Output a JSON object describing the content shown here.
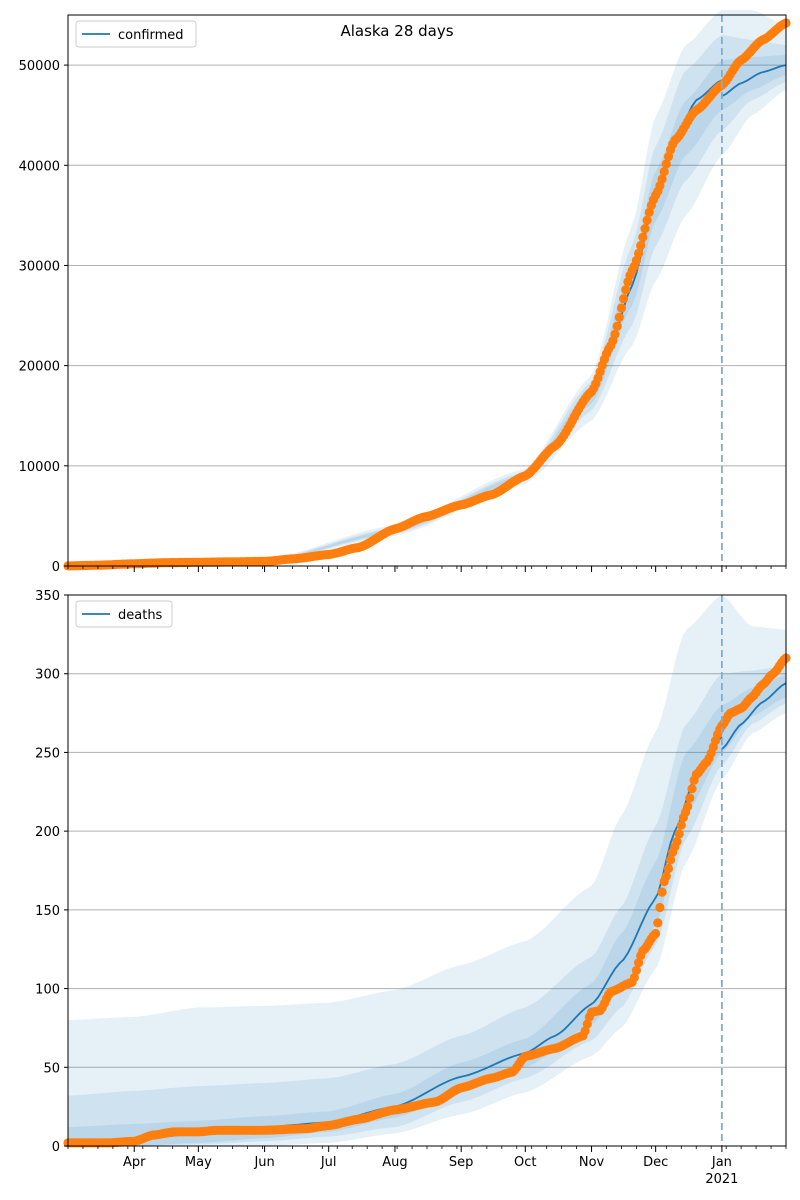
{
  "figure_title": "Alaska 28 days",
  "colors": {
    "line": "#1f77b4",
    "band": "#1f77b4",
    "points": "#ff7f0e",
    "grid": "#b0b0b0",
    "vline": "#7eaed3"
  },
  "x_axis": {
    "start": "2020-03-01",
    "end": "2021-01-31",
    "divider_date": "2021-01-01",
    "year_label": "2021",
    "month_ticks": [
      {
        "date": "2020-04-01",
        "label": "Apr"
      },
      {
        "date": "2020-05-01",
        "label": "May"
      },
      {
        "date": "2020-06-01",
        "label": "Jun"
      },
      {
        "date": "2020-07-01",
        "label": "Jul"
      },
      {
        "date": "2020-08-01",
        "label": "Aug"
      },
      {
        "date": "2020-09-01",
        "label": "Sep"
      },
      {
        "date": "2020-10-01",
        "label": "Oct"
      },
      {
        "date": "2020-11-01",
        "label": "Nov"
      },
      {
        "date": "2020-12-01",
        "label": "Dec"
      },
      {
        "date": "2021-01-01",
        "label": "Jan"
      }
    ]
  },
  "chart_data": [
    {
      "type": "line",
      "legend": "confirmed",
      "legend_loc": "upper left",
      "grid": "y",
      "ylim": [
        0,
        55000
      ],
      "yticks": [
        0,
        10000,
        20000,
        30000,
        40000,
        50000
      ],
      "model_line": {
        "x": [
          "2020-03-01",
          "2020-04-01",
          "2020-05-01",
          "2020-06-01",
          "2020-06-20",
          "2020-07-01",
          "2020-07-15",
          "2020-08-01",
          "2020-08-15",
          "2020-09-01",
          "2020-09-15",
          "2020-10-01",
          "2020-10-15",
          "2020-11-01",
          "2020-11-10",
          "2020-11-20",
          "2020-12-01",
          "2020-12-10",
          "2020-12-20",
          "2021-01-01",
          "2021-01-10",
          "2021-01-20",
          "2021-01-31"
        ],
        "y": [
          50,
          200,
          370,
          450,
          650,
          1000,
          1700,
          3500,
          4900,
          6100,
          7200,
          9000,
          11800,
          17000,
          22000,
          28000,
          37000,
          42500,
          46500,
          48500,
          49100,
          49600,
          50000
        ]
      },
      "observed_forecast_line": {
        "x": [
          "2021-01-01",
          "2021-01-10",
          "2021-01-20",
          "2021-01-31"
        ],
        "y": [
          46900,
          48200,
          49300,
          50000
        ]
      },
      "bands": [
        {
          "level": "outer",
          "x": [
            "2020-03-01",
            "2020-06-01",
            "2020-08-01",
            "2020-10-01",
            "2020-11-01",
            "2020-11-20",
            "2020-12-01",
            "2020-12-15",
            "2021-01-01",
            "2021-01-15",
            "2021-01-31"
          ],
          "lower": [
            0,
            350,
            3000,
            8200,
            14500,
            22000,
            28500,
            35000,
            41000,
            45000,
            47500
          ],
          "upper": [
            150,
            650,
            4100,
            9700,
            19000,
            34000,
            45000,
            52000,
            55500,
            55500,
            54000
          ]
        },
        {
          "level": "mid",
          "x": [
            "2020-03-01",
            "2020-06-01",
            "2020-08-01",
            "2020-10-01",
            "2020-11-01",
            "2020-11-20",
            "2020-12-01",
            "2020-12-15",
            "2021-01-01",
            "2021-01-15",
            "2021-01-31"
          ],
          "lower": [
            20,
            400,
            3200,
            8500,
            15500,
            24000,
            32000,
            38500,
            43500,
            46500,
            48300
          ],
          "upper": [
            100,
            550,
            3850,
            9400,
            18400,
            32000,
            42000,
            49500,
            53000,
            52500,
            52000
          ]
        },
        {
          "level": "inner",
          "x": [
            "2020-03-01",
            "2020-06-01",
            "2020-08-01",
            "2020-10-01",
            "2020-11-01",
            "2020-11-20",
            "2020-12-01",
            "2020-12-15",
            "2021-01-01",
            "2021-01-15",
            "2021-01-31"
          ],
          "lower": [
            30,
            420,
            3350,
            8800,
            16200,
            26000,
            34500,
            41000,
            45500,
            47500,
            49000
          ],
          "upper": [
            80,
            500,
            3700,
            9200,
            17700,
            30000,
            39500,
            46500,
            50500,
            50800,
            51000
          ]
        }
      ],
      "observations": {
        "x": [
          "2020-03-01",
          "2020-03-15",
          "2020-04-01",
          "2020-04-15",
          "2020-05-01",
          "2020-05-15",
          "2020-06-01",
          "2020-06-15",
          "2020-07-01",
          "2020-07-15",
          "2020-08-01",
          "2020-08-15",
          "2020-09-01",
          "2020-09-15",
          "2020-10-01",
          "2020-10-15",
          "2020-11-01",
          "2020-11-10",
          "2020-11-20",
          "2020-12-01",
          "2020-12-10",
          "2020-12-20",
          "2021-01-01",
          "2021-01-10",
          "2021-01-20",
          "2021-01-31"
        ],
        "y": [
          10,
          80,
          220,
          330,
          370,
          410,
          460,
          720,
          1150,
          1850,
          3700,
          4900,
          6100,
          7100,
          9000,
          12000,
          17400,
          22000,
          29500,
          37000,
          42500,
          45500,
          48000,
          50500,
          52500,
          54200
        ]
      }
    },
    {
      "type": "line",
      "legend": "deaths",
      "legend_loc": "upper left",
      "grid": "y",
      "ylim": [
        0,
        350
      ],
      "yticks": [
        0,
        50,
        100,
        150,
        200,
        250,
        300,
        350
      ],
      "model_line": {
        "x": [
          "2020-03-01",
          "2020-04-01",
          "2020-05-01",
          "2020-06-01",
          "2020-07-01",
          "2020-08-01",
          "2020-09-01",
          "2020-10-01",
          "2020-10-15",
          "2020-11-01",
          "2020-11-15",
          "2020-12-01",
          "2020-12-10",
          "2020-12-20",
          "2021-01-01",
          "2021-01-10",
          "2021-01-20",
          "2021-01-31"
        ],
        "y": [
          2,
          4,
          8,
          12,
          15,
          25,
          44,
          59,
          70,
          90,
          117,
          157,
          200,
          236,
          260,
          271,
          285,
          294
        ]
      },
      "observed_forecast_line": {
        "x": [
          "2021-01-01",
          "2021-01-10",
          "2021-01-20",
          "2021-01-31"
        ],
        "y": [
          252,
          268,
          282,
          294
        ]
      },
      "bands": [
        {
          "level": "outer",
          "x": [
            "2020-03-01",
            "2020-04-01",
            "2020-05-01",
            "2020-06-01",
            "2020-07-01",
            "2020-08-01",
            "2020-09-01",
            "2020-10-01",
            "2020-11-01",
            "2020-11-15",
            "2020-12-01",
            "2020-12-15",
            "2021-01-01",
            "2021-01-15",
            "2021-01-31"
          ],
          "lower": [
            0,
            0,
            0,
            0,
            2,
            8,
            20,
            34,
            57,
            75,
            112,
            180,
            233,
            262,
            275
          ],
          "upper": [
            80,
            82,
            88,
            89,
            91,
            99,
            115,
            130,
            165,
            210,
            263,
            328,
            350,
            330,
            328
          ]
        },
        {
          "level": "mid",
          "x": [
            "2020-03-01",
            "2020-04-01",
            "2020-05-01",
            "2020-06-01",
            "2020-07-01",
            "2020-08-01",
            "2020-09-01",
            "2020-10-01",
            "2020-11-01",
            "2020-11-15",
            "2020-12-01",
            "2020-12-15",
            "2021-01-01",
            "2021-01-15",
            "2021-01-31"
          ],
          "lower": [
            0,
            0,
            1,
            3,
            6,
            12,
            28,
            43,
            67,
            88,
            127,
            195,
            242,
            268,
            281
          ],
          "upper": [
            32,
            35,
            38,
            40,
            43,
            52,
            70,
            88,
            120,
            152,
            203,
            268,
            300,
            302,
            305
          ]
        },
        {
          "level": "inner",
          "x": [
            "2020-03-01",
            "2020-04-01",
            "2020-05-01",
            "2020-06-01",
            "2020-07-01",
            "2020-08-01",
            "2020-09-01",
            "2020-10-01",
            "2020-11-01",
            "2020-11-15",
            "2020-12-01",
            "2020-12-15",
            "2021-01-01",
            "2021-01-15",
            "2021-01-31"
          ],
          "lower": [
            0,
            0,
            2,
            5,
            9,
            18,
            34,
            50,
            77,
            100,
            140,
            210,
            250,
            273,
            285
          ],
          "upper": [
            12,
            14,
            16,
            19,
            22,
            33,
            53,
            68,
            103,
            135,
            180,
            250,
            280,
            291,
            299
          ]
        }
      ],
      "observations": {
        "x": [
          "2020-03-01",
          "2020-03-20",
          "2020-04-01",
          "2020-04-10",
          "2020-04-20",
          "2020-05-01",
          "2020-05-10",
          "2020-05-20",
          "2020-06-01",
          "2020-06-20",
          "2020-07-01",
          "2020-07-15",
          "2020-08-01",
          "2020-08-20",
          "2020-09-01",
          "2020-09-15",
          "2020-09-25",
          "2020-10-01",
          "2020-10-15",
          "2020-10-28",
          "2020-11-01",
          "2020-11-05",
          "2020-11-10",
          "2020-11-20",
          "2020-11-25",
          "2020-12-01",
          "2020-12-05",
          "2020-12-10",
          "2020-12-15",
          "2020-12-20",
          "2020-12-25",
          "2021-01-01",
          "2021-01-05",
          "2021-01-10",
          "2021-01-15",
          "2021-01-20",
          "2021-01-25",
          "2021-01-31"
        ],
        "y": [
          2,
          2,
          3,
          7,
          9,
          9,
          10,
          10,
          10,
          11,
          13,
          17,
          23,
          28,
          37,
          43,
          47,
          57,
          62,
          70,
          85,
          86,
          98,
          104,
          124,
          135,
          168,
          190,
          212,
          236,
          244,
          267,
          275,
          278,
          285,
          293,
          300,
          310
        ]
      }
    }
  ]
}
